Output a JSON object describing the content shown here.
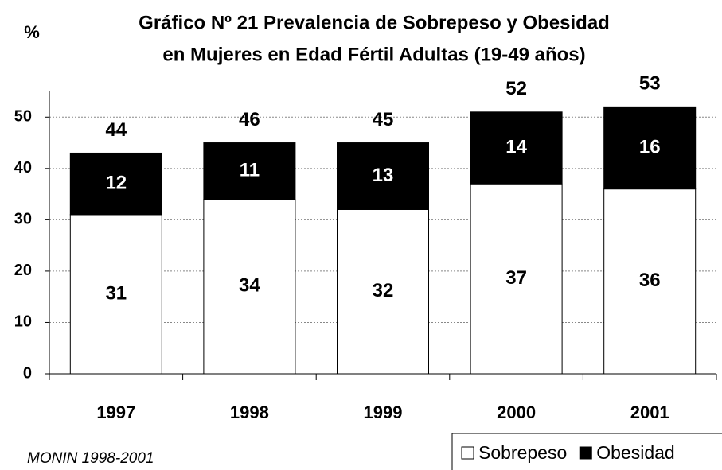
{
  "chart_data": {
    "type": "stacked_bar",
    "title": [
      "Gráfico Nº 21  Prevalencia de Sobrepeso y Obesidad",
      "en Mujeres en Edad Fértil Adultas (19-49 años)"
    ],
    "y_label": "%",
    "source": "MONIN 1998-2001",
    "categories": [
      "1997",
      "1998",
      "1999",
      "2000",
      "2001"
    ],
    "series": [
      {
        "name": "Sobrepeso",
        "color": "#ffffff",
        "values": [
          31,
          34,
          32,
          37,
          36
        ]
      },
      {
        "name": "Obesidad",
        "color": "#000000",
        "values": [
          12,
          11,
          13,
          14,
          16
        ]
      }
    ],
    "totals": [
      44,
      46,
      45,
      52,
      53
    ],
    "ylim": [
      0,
      55
    ],
    "yticks": [
      0,
      10,
      20,
      30,
      40,
      50
    ],
    "grid": true,
    "legend": "bottom-right"
  }
}
